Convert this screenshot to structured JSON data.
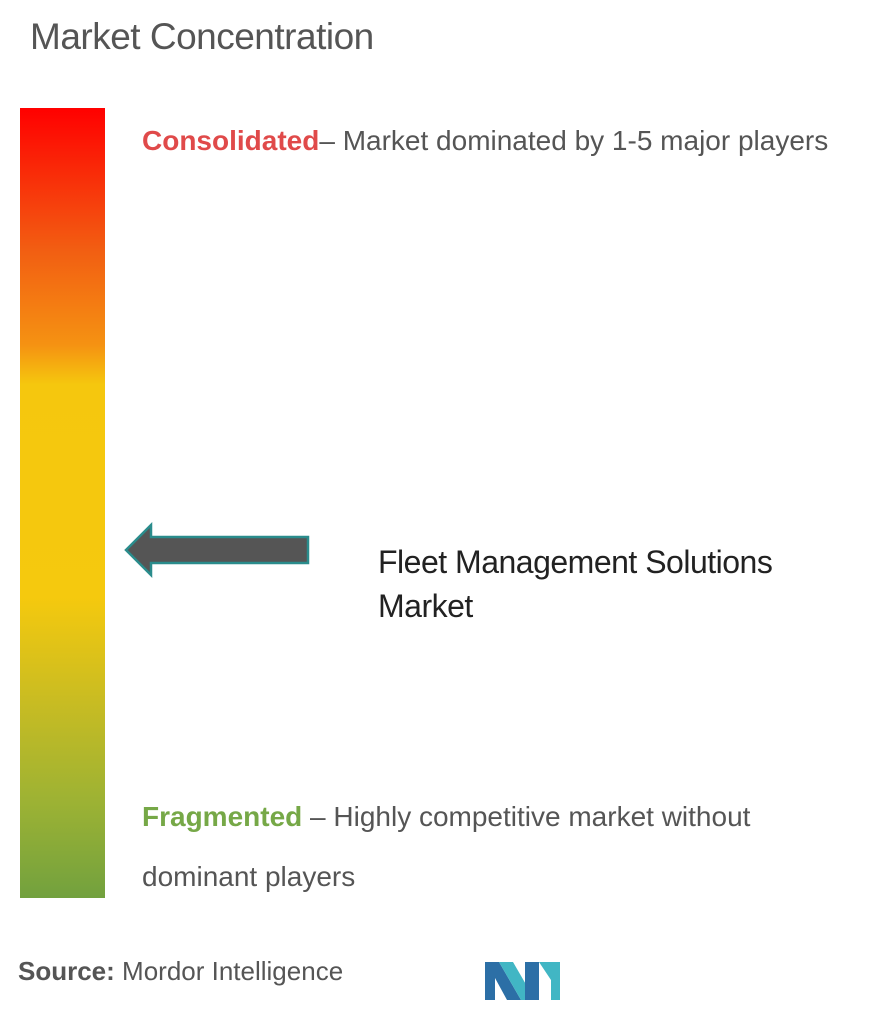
{
  "title": "Market Concentration",
  "scale": {
    "top_label": "Consolidated",
    "top_description": "– Market dominated by 1-5 major players",
    "bottom_label": "Fragmented",
    "bottom_description": " – Highly competitive market without dominant players",
    "colors": {
      "top": "#ff0000",
      "middle": "#f5c90e",
      "bottom": "#72a13e",
      "consolidated_text": "#e04a4a",
      "fragmented_text": "#76a847",
      "arrow": "#555555",
      "arrow_outline": "#2a8c8c"
    }
  },
  "marker": {
    "label": "Fleet Management Solutions Market",
    "level_fraction_from_top": 0.56
  },
  "source": {
    "label": "Source:",
    "value": " Mordor Intelligence"
  },
  "logo": {
    "icon": "mordor-intelligence-logo-icon"
  }
}
